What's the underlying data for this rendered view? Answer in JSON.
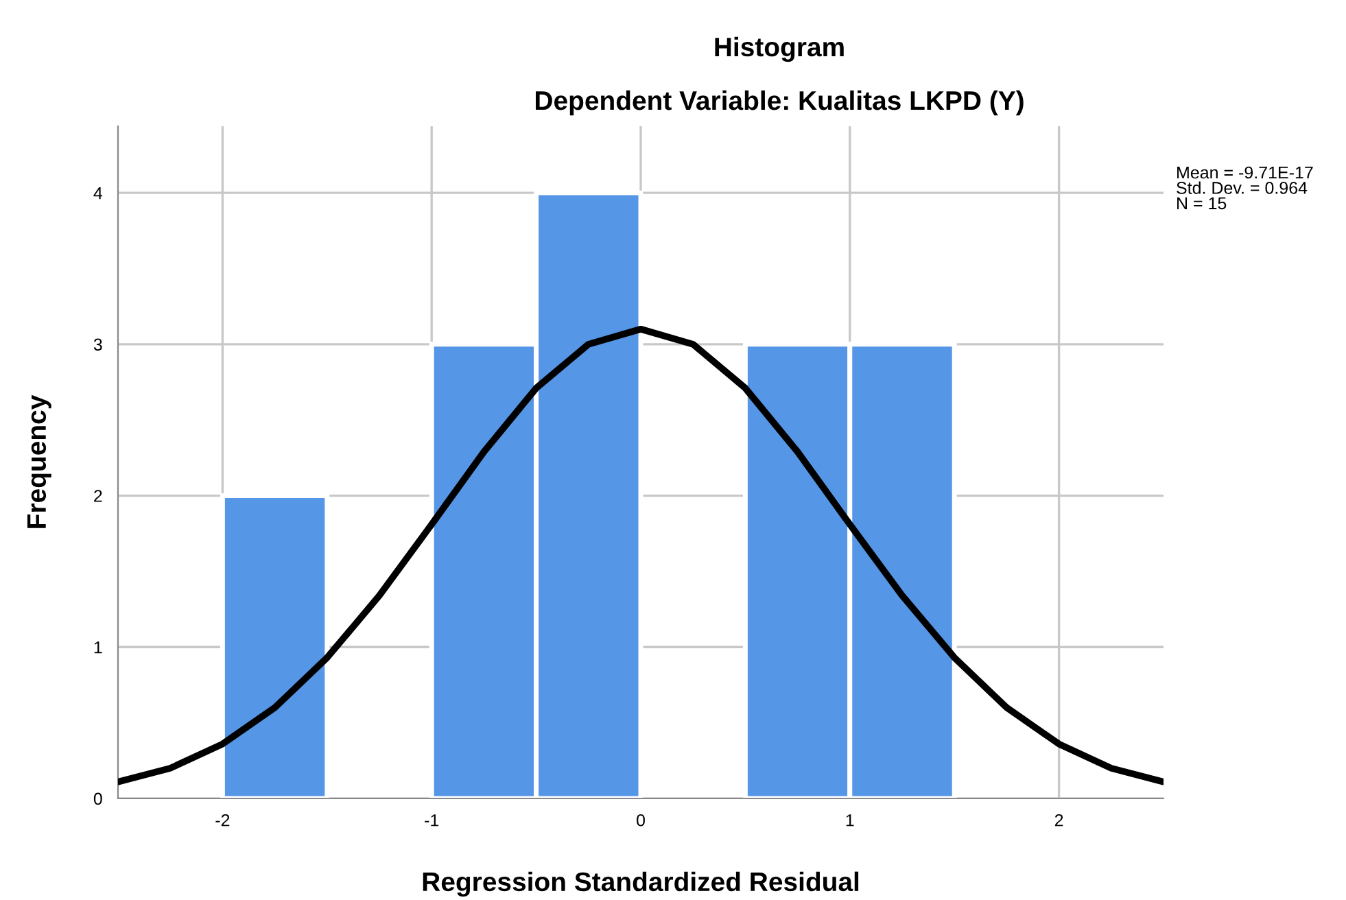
{
  "chart_data": {
    "type": "histogram",
    "title": "Histogram",
    "subtitle": "Dependent Variable: Kualitas LKPD (Y)",
    "xlabel": "Regression Standardized Residual",
    "ylabel": "Frequency",
    "bins": [
      -2,
      -1.5,
      -1,
      -0.5,
      0,
      0.5,
      1,
      1.5
    ],
    "values": [
      2,
      0,
      3,
      4,
      0,
      3,
      3
    ],
    "color": "#5596e6",
    "series": [
      {
        "type": "line",
        "color": "#000000",
        "x": [
          -2.5,
          -2.25,
          -2,
          -1.75,
          -1.5,
          -1.25,
          -1,
          -0.75,
          -0.5,
          -0.25,
          0,
          0.25,
          0.5,
          0.75,
          1,
          1.25,
          1.5,
          1.75,
          2,
          2.25,
          2.5
        ],
        "values": [
          0.11,
          0.2,
          0.36,
          0.6,
          0.93,
          1.34,
          1.81,
          2.29,
          2.71,
          3.0,
          3.1,
          3.0,
          2.71,
          2.29,
          1.81,
          1.34,
          0.93,
          0.6,
          0.36,
          0.2,
          0.11
        ]
      }
    ],
    "xlim": [
      -2.5,
      2.5
    ],
    "xticks": [
      -2,
      -1,
      0,
      1,
      2
    ],
    "ylim": [
      0,
      4.44
    ],
    "yticks": [
      0,
      1,
      2,
      3,
      4
    ],
    "grid": true,
    "annotations": [
      "Mean = -9.71E-17\nStd. Dev. = 0.964\nN = 15"
    ]
  }
}
